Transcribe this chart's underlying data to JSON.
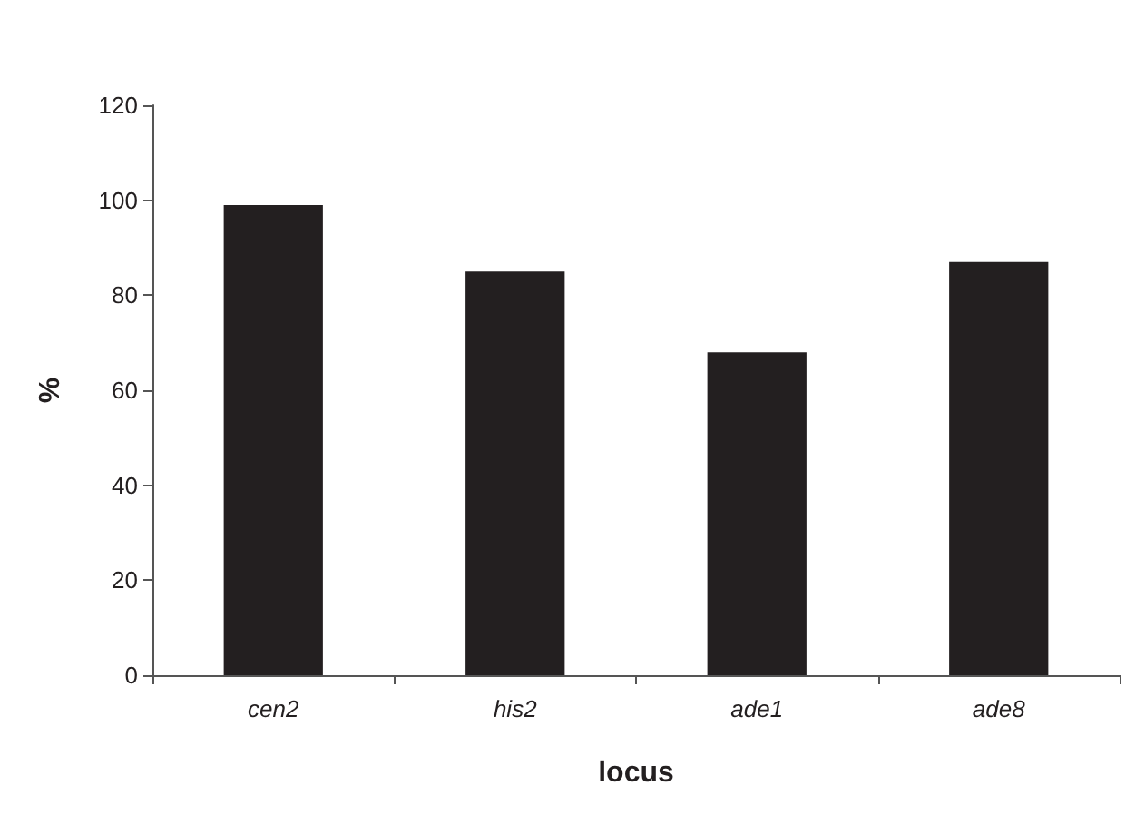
{
  "chart_data": {
    "type": "bar",
    "xlabel": "locus",
    "ylabel": "%",
    "categories": [
      "cen2",
      "his2",
      "ade1",
      "ade8"
    ],
    "values": [
      99,
      85,
      68,
      87
    ],
    "color": "#231f20",
    "ylim": [
      0,
      120
    ],
    "yticks": [
      0,
      20,
      40,
      60,
      80,
      100,
      120
    ],
    "grid": false
  }
}
